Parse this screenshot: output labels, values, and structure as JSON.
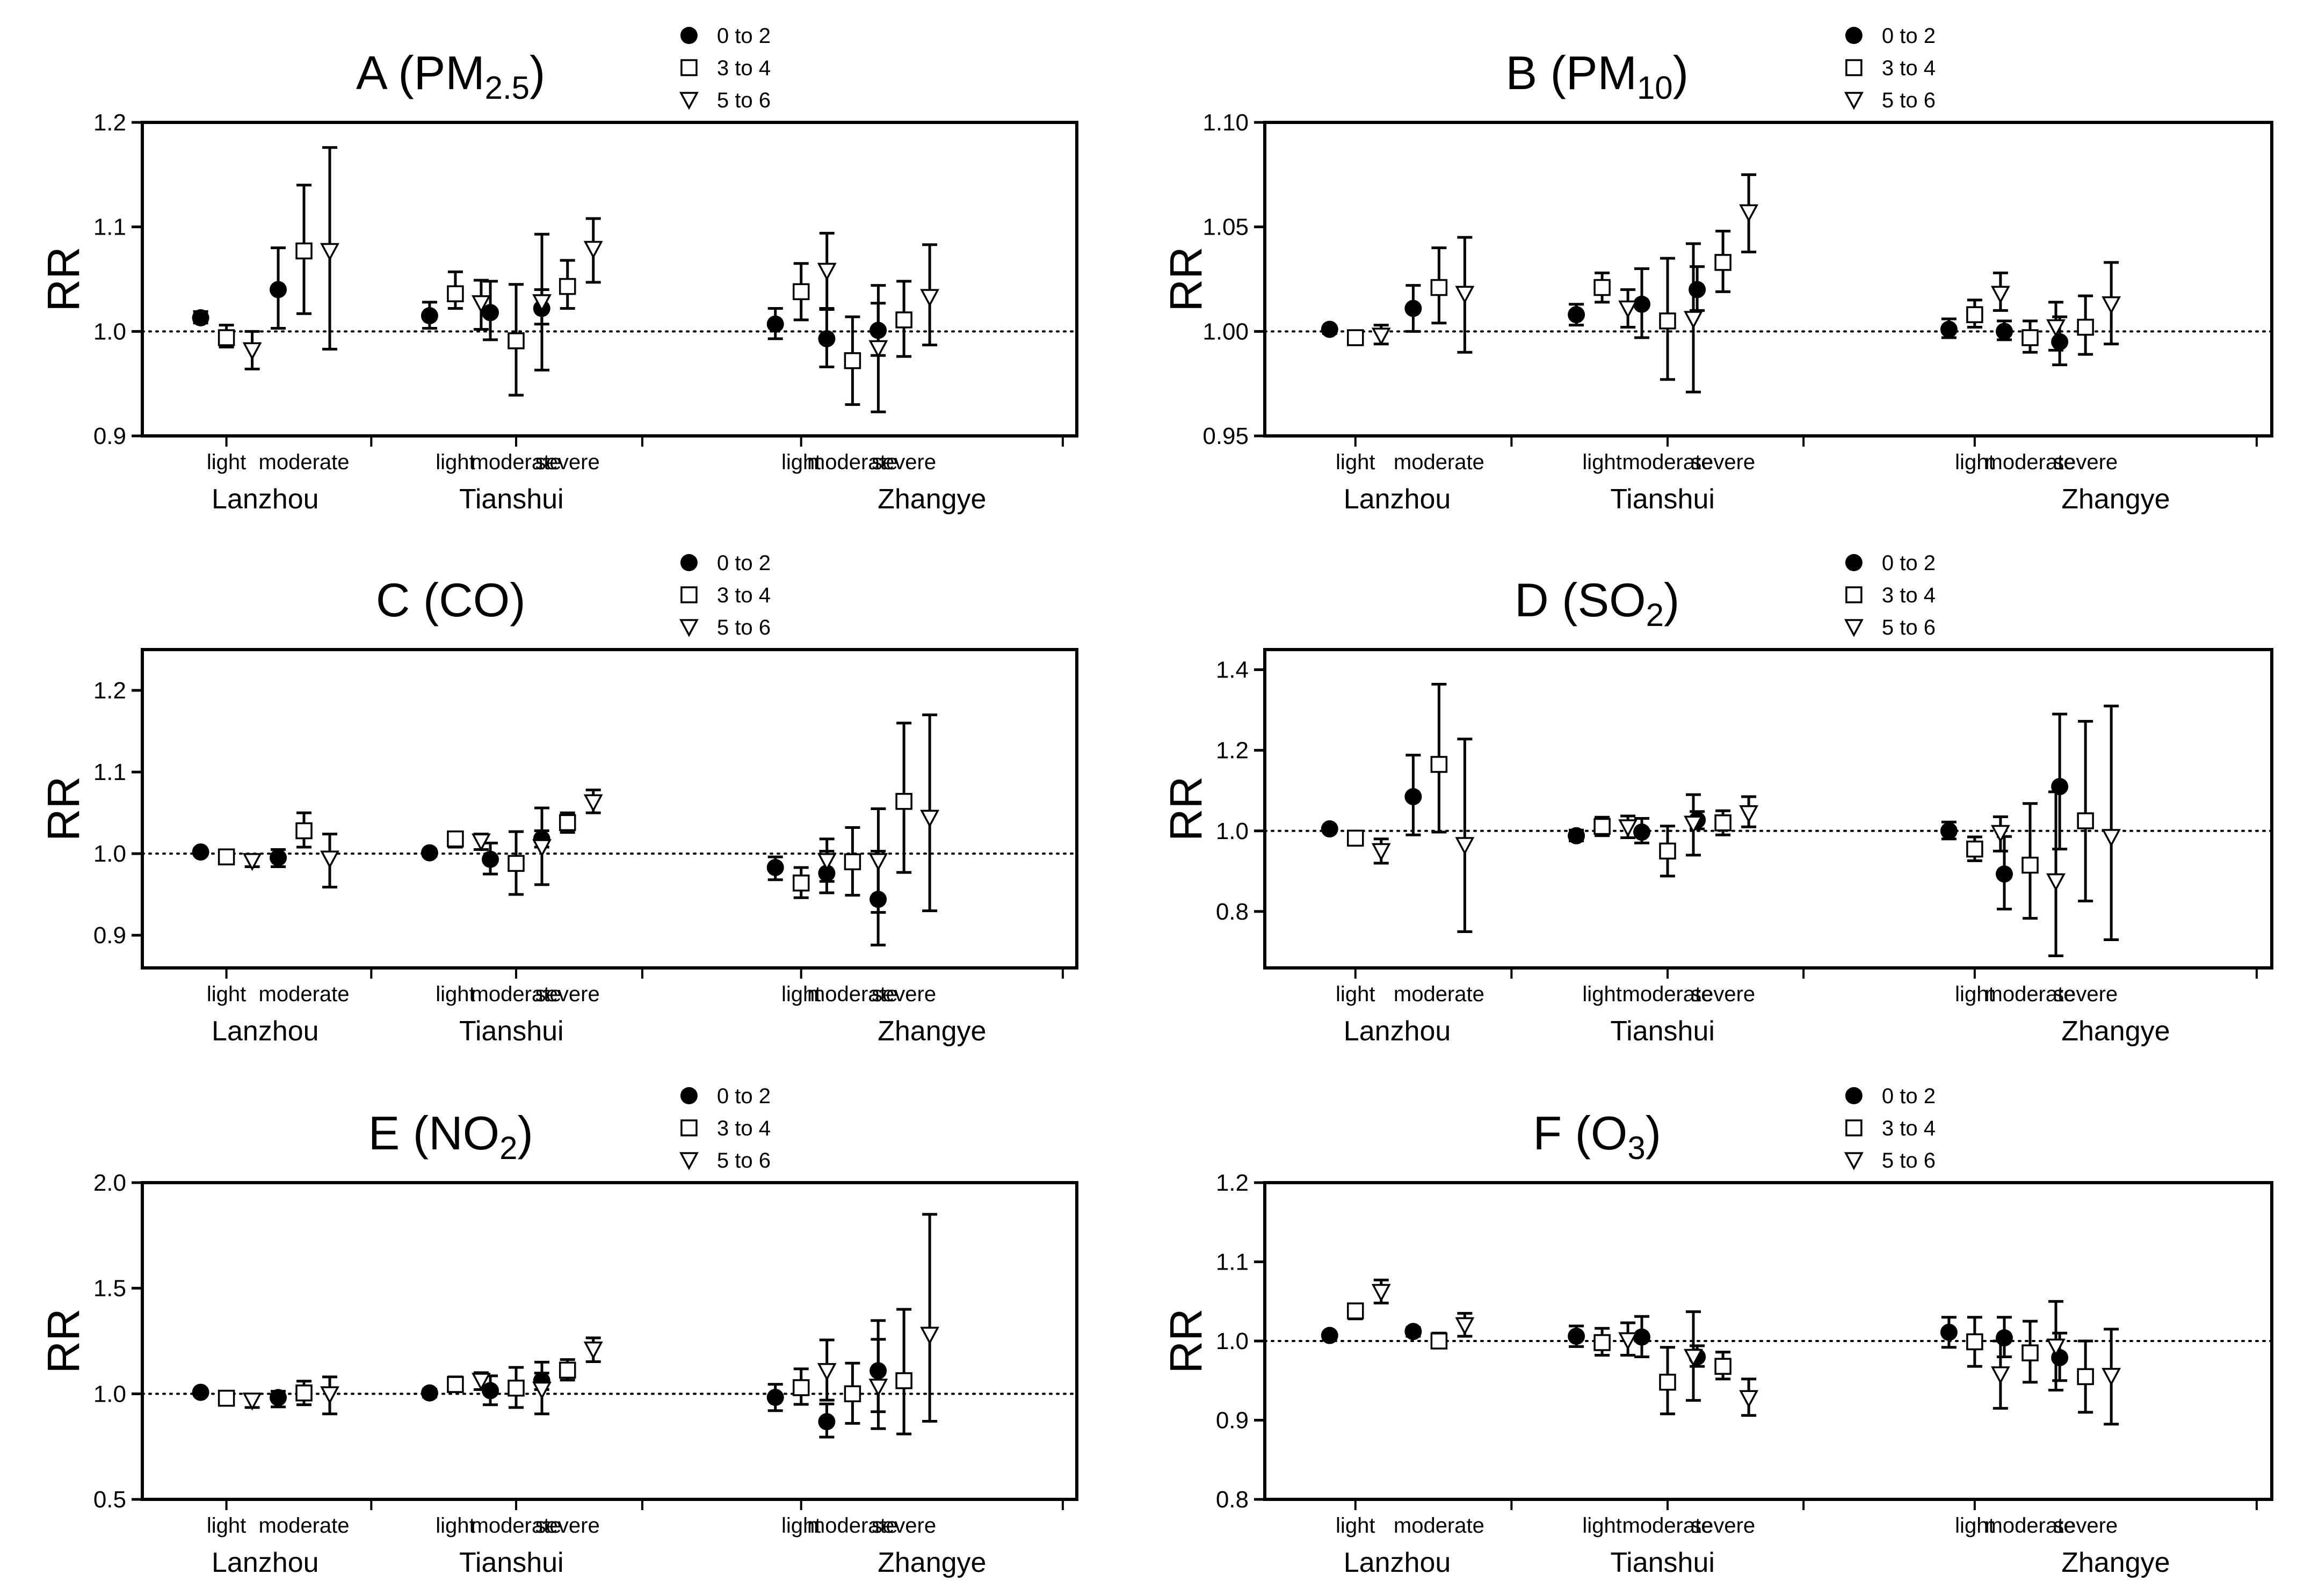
{
  "figure": {
    "legend": [
      "0 to 2",
      "3 to 4",
      "5 to 6"
    ],
    "ylabel": "RR",
    "panels": [
      {
        "title_main": "A (PM",
        "title_sub": "2.5",
        "title_end": ")",
        "y_ticks": [
          "0.9",
          "1.0",
          "1.1",
          "1.2"
        ],
        "y_ticks_start": 0.9,
        "y_ticks_step": 0.1,
        "ylim": [
          0.9,
          1.2
        ],
        "ref": 1.0,
        "cities": [
          "Lanzhou",
          "Tianshui",
          "Zhangye"
        ],
        "categories": [
          [
            "light",
            "moderate"
          ],
          [
            "light",
            "moderate",
            "severe"
          ],
          [
            "light",
            "moderate",
            "severe"
          ]
        ]
      },
      {
        "title_main": "B (PM",
        "title_sub": "10",
        "title_end": ")",
        "y_ticks": [
          "0.95",
          "1.00",
          "1.05",
          "1.10"
        ],
        "y_ticks_start": 0.95,
        "y_ticks_step": 0.05,
        "ylim": [
          0.95,
          1.1
        ],
        "ref": 1.0,
        "cities": [
          "Lanzhou",
          "Tianshui",
          "Zhangye"
        ],
        "categories": [
          [
            "light",
            "moderate"
          ],
          [
            "light",
            "moderate",
            "severe"
          ],
          [
            "light",
            "moderate",
            "severe"
          ]
        ]
      },
      {
        "title_main": "C (CO",
        "title_sub": "",
        "title_end": ")",
        "y_ticks": [
          "0.9",
          "1.0",
          "1.1",
          "1.2"
        ],
        "y_ticks_start": 0.9,
        "y_ticks_step": 0.1,
        "ylim": [
          0.86,
          1.25
        ],
        "ref": 1.0,
        "cities": [
          "Lanzhou",
          "Tianshui",
          "Zhangye"
        ],
        "categories": [
          [
            "light",
            "moderate"
          ],
          [
            "light",
            "moderate",
            "severe"
          ],
          [
            "light",
            "moderate",
            "severe"
          ]
        ]
      },
      {
        "title_main": "D (SO",
        "title_sub": "2",
        "title_end": ")",
        "y_ticks": [
          "0.8",
          "1.0",
          "1.2",
          "1.4"
        ],
        "y_ticks_start": 0.8,
        "y_ticks_step": 0.2,
        "ylim": [
          0.66,
          1.45
        ],
        "ref": 1.0,
        "cities": [
          "Lanzhou",
          "Tianshui",
          "Zhangye"
        ],
        "categories": [
          [
            "light",
            "moderate"
          ],
          [
            "light",
            "moderate",
            "severe"
          ],
          [
            "light",
            "moderate",
            "severe"
          ]
        ]
      },
      {
        "title_main": "E (NO",
        "title_sub": "2",
        "title_end": ")",
        "y_ticks": [
          "0.5",
          "1.0",
          "1.5",
          "2.0"
        ],
        "y_ticks_start": 0.5,
        "y_ticks_step": 0.5,
        "ylim": [
          0.5,
          2.0
        ],
        "ref": 1.0,
        "cities": [
          "Lanzhou",
          "Tianshui",
          "Zhangye"
        ],
        "categories": [
          [
            "light",
            "moderate"
          ],
          [
            "light",
            "moderate",
            "severe"
          ],
          [
            "light",
            "moderate",
            "severe"
          ]
        ]
      },
      {
        "title_main": "F (O",
        "title_sub": "3",
        "title_end": ")",
        "y_ticks": [
          "0.8",
          "0.9",
          "1.0",
          "1.1",
          "1.2"
        ],
        "y_ticks_start": 0.8,
        "y_ticks_step": 0.1,
        "ylim": [
          0.8,
          1.2
        ],
        "ref": 1.0,
        "cities": [
          "Lanzhou",
          "Tianshui",
          "Zhangye"
        ],
        "categories": [
          [
            "light",
            "moderate"
          ],
          [
            "light",
            "moderate",
            "severe"
          ],
          [
            "light",
            "moderate",
            "severe"
          ]
        ]
      }
    ]
  },
  "chart_data": [
    {
      "type": "scatter",
      "title": "A (PM2.5)",
      "ylabel": "RR",
      "ylim": [
        0.9,
        1.2
      ],
      "legend": [
        "0 to 2",
        "3 to 4",
        "5 to 6"
      ],
      "series": [
        {
          "name": "0 to 2",
          "est": [
            1.013,
            1.04,
            1.015,
            1.018,
            1.022,
            1.007,
            0.993,
            1.001
          ],
          "lo": [
            1.008,
            1.003,
            1.003,
            0.992,
            1.007,
            0.993,
            0.966,
            0.977
          ],
          "hi": [
            1.019,
            1.08,
            1.028,
            1.048,
            1.04,
            1.022,
            1.022,
            1.027
          ]
        },
        {
          "name": "3 to 4",
          "est": [
            0.994,
            1.077,
            1.036,
            0.991,
            1.043,
            1.038,
            0.972,
            1.011
          ],
          "lo": [
            0.985,
            1.017,
            1.022,
            0.939,
            1.022,
            1.011,
            0.93,
            0.976
          ],
          "hi": [
            1.006,
            1.14,
            1.057,
            1.045,
            1.068,
            1.065,
            1.014,
            1.048
          ]
        },
        {
          "name": "5 to 6",
          "est": [
            0.982,
            1.077,
            1.027,
            1.028,
            1.079,
            1.058,
            0.984,
            1.033
          ],
          "lo": [
            0.964,
            0.983,
            1.002,
            0.963,
            1.047,
            1.021,
            0.923,
            0.987
          ],
          "hi": [
            1.0,
            1.176,
            1.049,
            1.093,
            1.108,
            1.094,
            1.044,
            1.083
          ]
        }
      ]
    },
    {
      "type": "scatter",
      "title": "B (PM10)",
      "ylabel": "RR",
      "ylim": [
        0.95,
        1.1
      ],
      "legend": [
        "0 to 2",
        "3 to 4",
        "5 to 6"
      ],
      "series": [
        {
          "name": "0 to 2",
          "est": [
            1.001,
            1.011,
            1.008,
            1.013,
            1.02,
            1.001,
            1.0,
            0.995
          ],
          "lo": [
            0.999,
            1.0,
            1.003,
            0.997,
            1.01,
            0.997,
            0.996,
            0.984
          ],
          "hi": [
            1.002,
            1.022,
            1.013,
            1.03,
            1.031,
            1.006,
            1.005,
            1.007
          ]
        },
        {
          "name": "3 to 4",
          "est": [
            0.997,
            1.021,
            1.021,
            1.005,
            1.033,
            1.008,
            0.997,
            1.002
          ],
          "lo": [
            0.995,
            1.004,
            1.014,
            0.977,
            1.019,
            1.002,
            0.99,
            0.989
          ],
          "hi": [
            0.999,
            1.04,
            1.028,
            1.035,
            1.048,
            1.015,
            1.005,
            1.017
          ]
        },
        {
          "name": "5 to 6",
          "est": [
            0.998,
            1.018,
            1.011,
            1.006,
            1.057,
            1.018,
            1.002,
            1.013
          ],
          "lo": [
            0.994,
            0.99,
            1.002,
            0.971,
            1.038,
            1.01,
            0.991,
            0.994
          ],
          "hi": [
            1.003,
            1.045,
            1.02,
            1.042,
            1.075,
            1.028,
            1.014,
            1.033
          ]
        }
      ]
    },
    {
      "type": "scatter",
      "title": "C (CO)",
      "ylabel": "RR",
      "ylim": [
        0.86,
        1.25
      ],
      "legend": [
        "0 to 2",
        "3 to 4",
        "5 to 6"
      ],
      "series": [
        {
          "name": "0 to 2",
          "est": [
            1.002,
            0.995,
            1.001,
            0.993,
            1.018,
            0.983,
            0.976,
            0.944
          ],
          "lo": [
            1.0,
            0.984,
            0.997,
            0.975,
            1.008,
            0.968,
            0.952,
            0.888
          ],
          "hi": [
            1.004,
            1.005,
            1.005,
            1.013,
            1.028,
            0.996,
            1.003,
            1.003
          ]
        },
        {
          "name": "3 to 4",
          "est": [
            0.996,
            1.028,
            1.018,
            0.988,
            1.038,
            0.964,
            0.99,
            1.064
          ],
          "lo": [
            0.99,
            1.008,
            1.008,
            0.95,
            1.026,
            0.946,
            0.949,
            0.977
          ],
          "hi": [
            1.002,
            1.05,
            1.026,
            1.027,
            1.05,
            0.983,
            1.032,
            1.16
          ]
        },
        {
          "name": "5 to 6",
          "est": [
            0.991,
            0.994,
            1.015,
            1.008,
            1.063,
            0.991,
            0.991,
            1.044
          ],
          "lo": [
            0.984,
            0.959,
            1.005,
            0.962,
            1.05,
            0.966,
            0.928,
            0.93
          ],
          "hi": [
            0.998,
            1.024,
            1.024,
            1.056,
            1.078,
            1.018,
            1.055,
            1.17
          ]
        }
      ]
    },
    {
      "type": "scatter",
      "title": "D (SO2)",
      "ylabel": "RR",
      "ylim": [
        0.66,
        1.45
      ],
      "legend": [
        "0 to 2",
        "3 to 4",
        "5 to 6"
      ],
      "series": [
        {
          "name": "0 to 2",
          "est": [
            1.005,
            1.085,
            0.988,
            0.997,
            1.027,
            1.0,
            0.893,
            1.11
          ],
          "lo": [
            1.0,
            0.99,
            0.975,
            0.97,
            1.005,
            0.98,
            0.806,
            0.955
          ],
          "hi": [
            1.01,
            1.188,
            1.002,
            1.031,
            1.048,
            1.022,
            0.986,
            1.29
          ]
        },
        {
          "name": "3 to 4",
          "est": [
            0.982,
            1.165,
            1.011,
            0.95,
            1.02,
            0.955,
            0.915,
            1.025
          ],
          "lo": [
            0.968,
            0.997,
            0.988,
            0.888,
            0.99,
            0.926,
            0.783,
            0.826
          ],
          "hi": [
            0.996,
            1.364,
            1.034,
            1.012,
            1.05,
            0.985,
            1.068,
            1.272
          ]
        },
        {
          "name": "5 to 6",
          "est": [
            0.95,
            0.965,
            1.009,
            1.018,
            1.044,
            0.995,
            0.875,
            0.985
          ],
          "lo": [
            0.92,
            0.75,
            0.983,
            0.94,
            1.01,
            0.95,
            0.69,
            0.73
          ],
          "hi": [
            0.98,
            1.228,
            1.037,
            1.09,
            1.085,
            1.035,
            1.097,
            1.31
          ]
        }
      ]
    },
    {
      "type": "scatter",
      "title": "E (NO2)",
      "ylabel": "RR",
      "ylim": [
        0.5,
        2.0
      ],
      "legend": [
        "0 to 2",
        "3 to 4",
        "5 to 6"
      ],
      "series": [
        {
          "name": "0 to 2",
          "est": [
            1.007,
            0.982,
            1.004,
            1.015,
            1.062,
            0.983,
            0.868,
            1.109
          ],
          "lo": [
            0.995,
            0.938,
            0.985,
            0.948,
            1.02,
            0.92,
            0.795,
            0.915
          ],
          "hi": [
            1.015,
            1.012,
            1.022,
            1.085,
            1.098,
            1.045,
            0.952,
            1.347
          ]
        },
        {
          "name": "3 to 4",
          "est": [
            0.979,
            1.004,
            1.044,
            1.027,
            1.112,
            1.029,
            1.0,
            1.062
          ],
          "lo": [
            0.95,
            0.948,
            1.01,
            0.935,
            1.065,
            0.95,
            0.86,
            0.81
          ],
          "hi": [
            1.005,
            1.06,
            1.08,
            1.125,
            1.162,
            1.118,
            1.145,
            1.4
          ]
        },
        {
          "name": "5 to 6",
          "est": [
            0.968,
            0.998,
            1.062,
            1.02,
            1.21,
            1.108,
            1.034,
            1.28
          ],
          "lo": [
            0.935,
            0.905,
            1.02,
            0.905,
            1.152,
            0.97,
            0.835,
            0.87
          ],
          "hi": [
            0.998,
            1.08,
            1.1,
            1.15,
            1.265,
            1.255,
            1.258,
            1.85
          ]
        }
      ]
    },
    {
      "type": "scatter",
      "title": "F (O3)",
      "ylabel": "RR",
      "ylim": [
        0.8,
        1.2
      ],
      "legend": [
        "0 to 2",
        "3 to 4",
        "5 to 6"
      ],
      "series": [
        {
          "name": "0 to 2",
          "est": [
            1.007,
            1.012,
            1.006,
            1.005,
            0.98,
            1.011,
            1.004,
            0.979
          ],
          "lo": [
            1.004,
            1.006,
            0.993,
            0.98,
            0.968,
            0.992,
            0.98,
            0.95
          ],
          "hi": [
            1.01,
            1.017,
            1.019,
            1.031,
            0.994,
            1.03,
            1.03,
            1.01
          ]
        },
        {
          "name": "3 to 4",
          "est": [
            1.038,
            1.0,
            0.998,
            0.948,
            0.968,
            0.999,
            0.985,
            0.955
          ],
          "lo": [
            1.028,
            0.992,
            0.982,
            0.908,
            0.952,
            0.968,
            0.948,
            0.91
          ],
          "hi": [
            1.046,
            1.01,
            1.016,
            0.992,
            0.986,
            1.03,
            1.025,
            1.0
          ]
        },
        {
          "name": "5 to 6",
          "est": [
            1.062,
            1.02,
            1.001,
            0.98,
            0.928,
            0.958,
            0.993,
            0.956
          ],
          "lo": [
            1.048,
            1.006,
            0.982,
            0.925,
            0.906,
            0.915,
            0.938,
            0.895
          ],
          "hi": [
            1.077,
            1.035,
            1.023,
            1.037,
            0.952,
            1.0,
            1.05,
            1.015
          ]
        }
      ]
    }
  ]
}
